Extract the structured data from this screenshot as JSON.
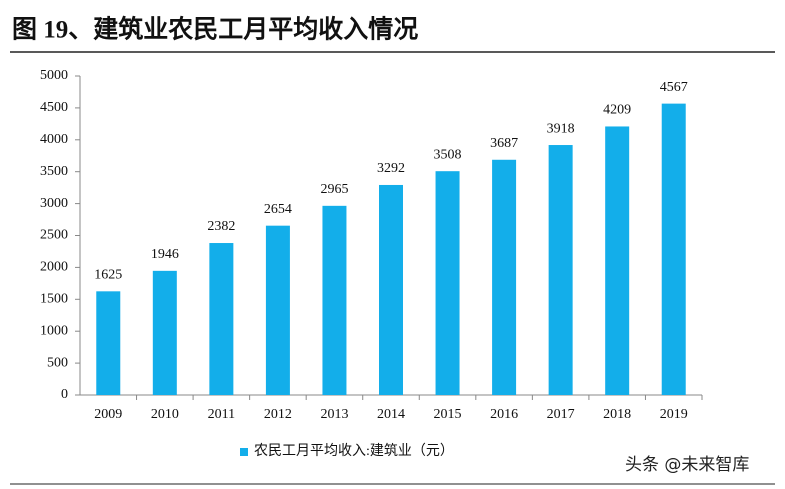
{
  "chart_data": {
    "type": "bar",
    "title": "图 19、建筑业农民工月平均收入情况",
    "categories": [
      "2009",
      "2010",
      "2011",
      "2012",
      "2013",
      "2014",
      "2015",
      "2016",
      "2017",
      "2018",
      "2019"
    ],
    "series": [
      {
        "name": "农民工月平均收入:建筑业（元）",
        "color": "#13aeea",
        "values": [
          1625,
          1946,
          2382,
          2654,
          2965,
          3292,
          3508,
          3687,
          3918,
          4209,
          4567
        ]
      }
    ],
    "ylim": [
      0,
      5000
    ],
    "yticks": [
      0,
      500,
      1000,
      1500,
      2000,
      2500,
      3000,
      3500,
      4000,
      4500,
      5000
    ],
    "grid": false,
    "legend": "bottom",
    "watermark": "头条 @未来智库"
  }
}
